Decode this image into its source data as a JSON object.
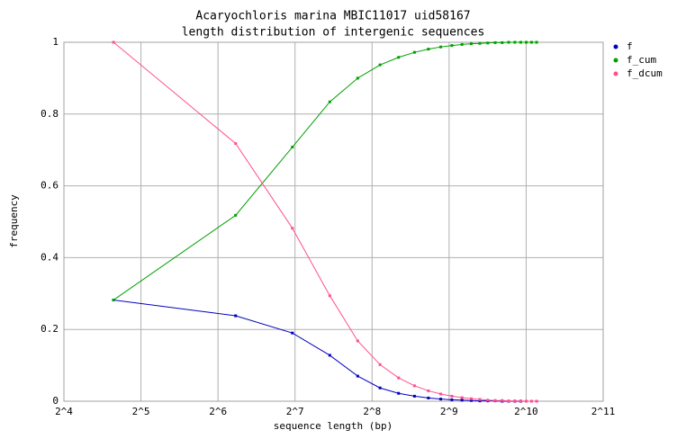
{
  "chart_data": {
    "type": "line",
    "title": "Acaryochloris marina MBIC11017 uid58167",
    "subtitle": "length distribution of intergenic sequences",
    "x_label": "sequence length (bp)",
    "y_label": "frequency",
    "x_scale": "log2",
    "x": [
      25,
      75,
      125,
      175,
      225,
      275,
      325,
      375,
      425,
      475,
      525,
      575,
      625,
      675,
      725,
      775,
      825,
      875,
      925,
      975,
      1025,
      1075,
      1125
    ],
    "series": [
      {
        "name": "f",
        "color": "#0000c0",
        "values": [
          0.282,
          0.238,
          0.19,
          0.128,
          0.07,
          0.037,
          0.022,
          0.014,
          0.009,
          0.006,
          0.004,
          0.003,
          0.002,
          0.001,
          0.001,
          0.001,
          0,
          0,
          0,
          0,
          0,
          0,
          0
        ]
      },
      {
        "name": "f_cum",
        "color": "#00a000",
        "values": [
          0.282,
          0.518,
          0.708,
          0.834,
          0.9,
          0.937,
          0.958,
          0.972,
          0.981,
          0.987,
          0.991,
          0.994,
          0.996,
          0.997,
          0.998,
          0.999,
          0.999,
          1,
          1,
          1,
          1,
          1,
          1
        ]
      },
      {
        "name": "f_dcum",
        "color": "#ff4f8f",
        "values": [
          1,
          0.718,
          0.482,
          0.294,
          0.168,
          0.102,
          0.065,
          0.043,
          0.029,
          0.02,
          0.014,
          0.01,
          0.007,
          0.005,
          0.003,
          0.002,
          0.002,
          0.001,
          0.001,
          0.001,
          0,
          0,
          0
        ]
      }
    ],
    "xlim": [
      16,
      2048
    ],
    "xticks": [
      {
        "value": 16,
        "label": "2^4"
      },
      {
        "value": 32,
        "label": "2^5"
      },
      {
        "value": 64,
        "label": "2^6"
      },
      {
        "value": 128,
        "label": "2^7"
      },
      {
        "value": 256,
        "label": "2^8"
      },
      {
        "value": 512,
        "label": "2^9"
      },
      {
        "value": 1024,
        "label": "2^10"
      },
      {
        "value": 2048,
        "label": "2^11"
      }
    ],
    "ylim": [
      0,
      1
    ],
    "yticks": [
      0,
      0.2,
      0.4,
      0.6,
      0.8,
      1
    ],
    "grid": true,
    "legend": "right"
  }
}
